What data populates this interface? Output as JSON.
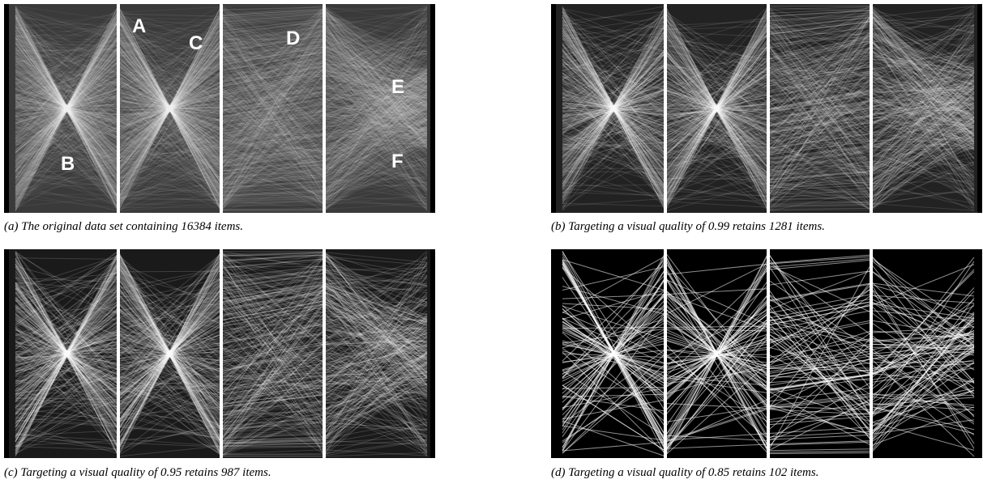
{
  "panels": [
    {
      "id": "a",
      "caption": "(a) The original data set containing 16384 items.",
      "labels": [
        "A",
        "B",
        "C",
        "D",
        "E",
        "F"
      ],
      "line_count": 1100,
      "line_opacity": 0.06,
      "fill_color": "#3a3a3a"
    },
    {
      "id": "b",
      "caption": "(b) Targeting a visual quality of 0.99 retains 1281 items.",
      "labels": [],
      "line_count": 500,
      "line_opacity": 0.12,
      "fill_color": "#222222"
    },
    {
      "id": "c",
      "caption": "(c) Targeting a visual quality of 0.95 retains 987 items.",
      "labels": [],
      "line_count": 380,
      "line_opacity": 0.16,
      "fill_color": "#1a1a1a"
    },
    {
      "id": "d",
      "caption": "(d) Targeting a visual quality of 0.85 retains 102 items.",
      "labels": [],
      "line_count": 102,
      "line_opacity": 0.55,
      "fill_color": "#000000"
    }
  ]
}
